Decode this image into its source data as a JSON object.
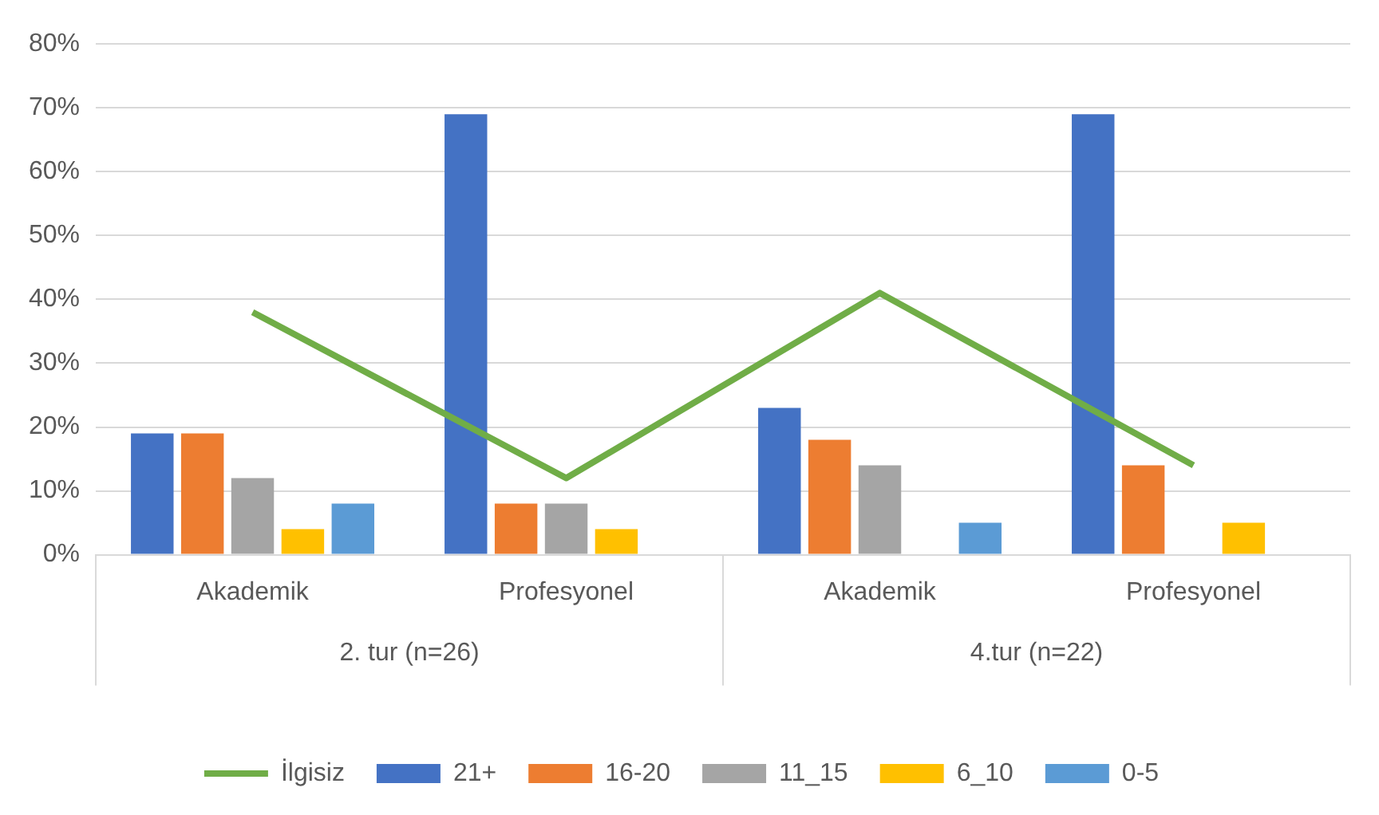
{
  "chart_data": {
    "type": "bar",
    "categories": [
      "Akademik",
      "Profesyonel",
      "Akademik",
      "Profesyonel"
    ],
    "series": [
      {
        "name": "21+",
        "color": "#4472c4",
        "values": [
          19,
          69,
          23,
          69
        ]
      },
      {
        "name": "16-20",
        "color": "#ed7d31",
        "values": [
          19,
          8,
          18,
          14
        ]
      },
      {
        "name": "11_15",
        "color": "#a5a5a5",
        "values": [
          12,
          8,
          14,
          null
        ]
      },
      {
        "name": "6_10",
        "color": "#ffc000",
        "values": [
          4,
          4,
          null,
          5
        ]
      },
      {
        "name": "0-5",
        "color": "#5b9bd5",
        "values": [
          8,
          null,
          5,
          null
        ]
      },
      {
        "name": "İlgisiz",
        "type": "line",
        "color": "#70ad47",
        "values": [
          38,
          12,
          41,
          14
        ],
        "marker": "none",
        "line_style": "solid"
      }
    ],
    "annotations": [
      "2. tur (n=26)",
      "4.tur (n=22)"
    ],
    "ylim": [
      0,
      80
    ],
    "yticks": [
      {
        "value": 0,
        "label": "0%"
      },
      {
        "value": 10,
        "label": "10%"
      },
      {
        "value": 20,
        "label": "20%"
      },
      {
        "value": 30,
        "label": "30%"
      },
      {
        "value": 40,
        "label": "40%"
      },
      {
        "value": 50,
        "label": "50%"
      },
      {
        "value": 60,
        "label": "60%"
      },
      {
        "value": 70,
        "label": "70%"
      },
      {
        "value": 80,
        "label": "80%"
      }
    ],
    "grid": "y",
    "legend": "bottom"
  }
}
